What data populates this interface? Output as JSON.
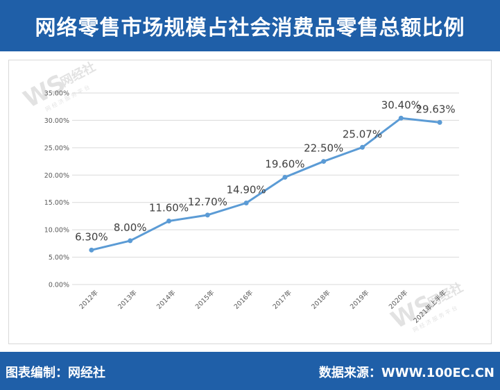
{
  "header": {
    "title": "网络零售市场规模占社会消费品零售总额比例"
  },
  "footer": {
    "left_label": "图表编制：",
    "left_value": "网经社",
    "right_label": "数据来源：",
    "right_value": "WWW.100EC.CN"
  },
  "watermark": {
    "brand": "网经社",
    "sub": "网 经 济 服 务 平 台"
  },
  "colors": {
    "header_bg": "#1f5fa8",
    "line": "#5b9bd5",
    "grid": "#d9d9d9",
    "text": "#404040"
  },
  "chart_data": {
    "type": "line",
    "title": "",
    "xlabel": "",
    "ylabel": "",
    "categories": [
      "2012年",
      "2013年",
      "2014年",
      "2015年",
      "2016年",
      "2017年",
      "2018年",
      "2019年",
      "2020年",
      "2021年上半年"
    ],
    "values": [
      6.3,
      8.0,
      11.6,
      12.7,
      14.9,
      19.6,
      22.5,
      25.07,
      30.4,
      29.63
    ],
    "data_labels": [
      "6.30%",
      "8.00%",
      "11.60%",
      "12.70%",
      "14.90%",
      "19.60%",
      "22.50%",
      "25.07%",
      "30.40%",
      "29.63%"
    ],
    "y_ticks": [
      "0.00%",
      "5.00%",
      "10.00%",
      "15.00%",
      "20.00%",
      "25.00%",
      "30.00%",
      "35.00%"
    ],
    "ylim": [
      0,
      35
    ],
    "grid": true,
    "legend": "none"
  }
}
